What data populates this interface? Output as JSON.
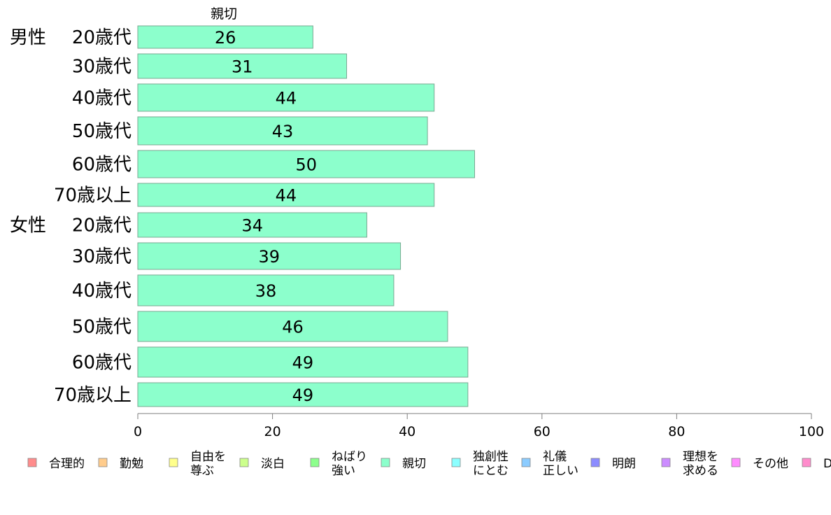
{
  "chart_data": {
    "type": "bar",
    "orientation": "horizontal",
    "series_title": "親切",
    "groups": [
      {
        "name": "男性",
        "categories": [
          "20歳代",
          "30歳代",
          "40歳代",
          "50歳代",
          "60歳代",
          "70歳以上"
        ],
        "values": [
          26,
          31,
          44,
          43,
          50,
          44
        ]
      },
      {
        "name": "女性",
        "categories": [
          "20歳代",
          "30歳代",
          "40歳代",
          "50歳代",
          "60歳代",
          "70歳以上"
        ],
        "values": [
          34,
          39,
          38,
          46,
          49,
          49
        ]
      }
    ],
    "series": [
      {
        "name": "親切",
        "values": [
          26,
          31,
          44,
          43,
          50,
          44,
          34,
          39,
          38,
          46,
          49,
          49
        ]
      }
    ],
    "xlim": [
      0,
      100
    ],
    "xticks": [
      "0",
      "20",
      "40",
      "60",
      "80",
      "100"
    ],
    "bar_color": "#8cffcc",
    "grid": false,
    "legend_position": "bottom",
    "legend": [
      {
        "label": [
          "合理的"
        ],
        "color": "#ff8c8c"
      },
      {
        "label": [
          "勤勉"
        ],
        "color": "#ffcc8c"
      },
      {
        "label": [
          "自由を",
          "尊ぶ"
        ],
        "color": "#ffff8c"
      },
      {
        "label": [
          "淡白"
        ],
        "color": "#ccff8c"
      },
      {
        "label": [
          "ねばり",
          "強い"
        ],
        "color": "#8cff8c"
      },
      {
        "label": [
          "親切"
        ],
        "color": "#8cffcc"
      },
      {
        "label": [
          "独創性",
          "にとむ"
        ],
        "color": "#8cffff"
      },
      {
        "label": [
          "礼儀",
          "正しい"
        ],
        "color": "#8cccff"
      },
      {
        "label": [
          "明朗"
        ],
        "color": "#8c8cff"
      },
      {
        "label": [
          "理想を",
          "求める"
        ],
        "color": "#cc8cff"
      },
      {
        "label": [
          "その他"
        ],
        "color": "#ff8cff"
      },
      {
        "label": [
          "D"
        ],
        "color": "#ff8ccc"
      }
    ]
  }
}
